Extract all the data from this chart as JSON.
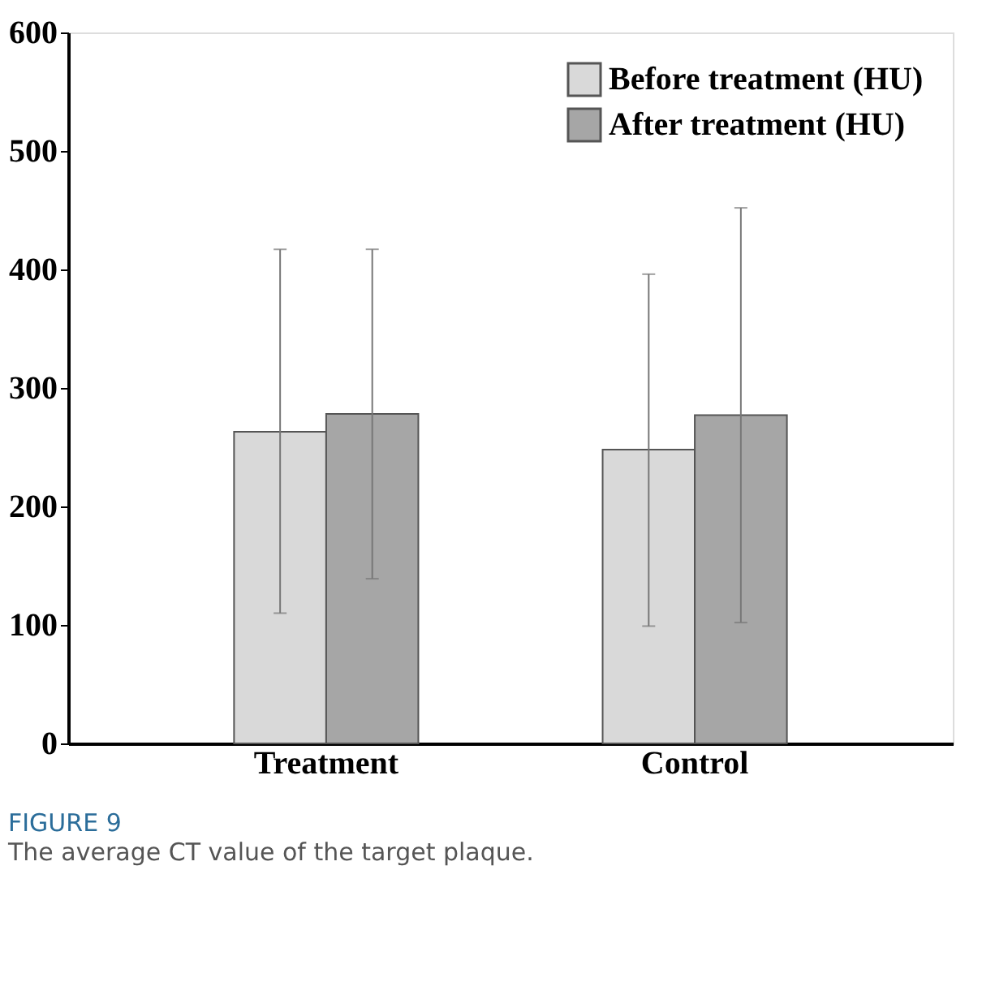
{
  "chart_data": {
    "type": "bar",
    "categories": [
      "Treatment",
      "Control"
    ],
    "series": [
      {
        "name": "Before treatment (HU)",
        "color": "#d9d9d9",
        "values": [
          263,
          248
        ],
        "errors": [
          [
            110,
            417
          ],
          [
            99,
            396
          ]
        ]
      },
      {
        "name": "After treatment (HU)",
        "color": "#a6a6a6",
        "values": [
          278,
          277
        ],
        "errors": [
          [
            139,
            417
          ],
          [
            102,
            452
          ]
        ]
      }
    ],
    "ylim": [
      0,
      600
    ],
    "yticks": [
      0,
      100,
      200,
      300,
      400,
      500,
      600
    ],
    "grid": false,
    "legend": "top right",
    "annotations": [
      "FIGURE 9",
      "The average CT value of the target plaque."
    ]
  }
}
